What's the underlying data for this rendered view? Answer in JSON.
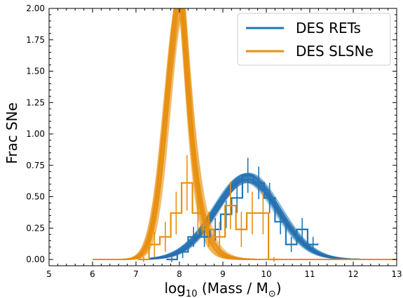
{
  "chart_data": {
    "type": "line",
    "xlabel_main": "log",
    "xlabel_sub": "10",
    "xlabel_rest": " (Mass / M",
    "xlabel_sun": "⊙",
    "xlabel_close": ")",
    "ylabel": "Frac SNe",
    "xlim": [
      5,
      13
    ],
    "ylim": [
      -0.05,
      2.0
    ],
    "xticks": [
      5,
      6,
      7,
      8,
      9,
      10,
      11,
      12,
      13
    ],
    "yticks": [
      0.0,
      0.25,
      0.5,
      0.75,
      1.0,
      1.25,
      1.5,
      1.75,
      2.0
    ],
    "ytick_labels": [
      "0.00",
      "0.25",
      "0.50",
      "0.75",
      "1.00",
      "1.25",
      "1.50",
      "1.75",
      "2.00"
    ],
    "legend_position": "upper right",
    "grid": false,
    "series": [
      {
        "name": "DES RETs",
        "color": "#1f77b4",
        "curve": {
          "center": 9.55,
          "sigma": 0.72,
          "peak": 0.65,
          "xmin": 7.3,
          "xmax": 12.4
        },
        "hist_edges": [
          7.7,
          7.95,
          8.2,
          8.45,
          8.7,
          8.95,
          9.2,
          9.45,
          9.7,
          9.95,
          10.2,
          10.45,
          10.7,
          10.95,
          11.2
        ],
        "hist_values": [
          0.0,
          0.06,
          0.18,
          0.18,
          0.24,
          0.36,
          0.49,
          0.67,
          0.61,
          0.49,
          0.3,
          0.12,
          0.24,
          0.12,
          0.0
        ],
        "hist_errors": [
          0.02,
          0.05,
          0.08,
          0.08,
          0.09,
          0.11,
          0.12,
          0.14,
          0.13,
          0.12,
          0.1,
          0.06,
          0.09,
          0.06,
          0.02
        ]
      },
      {
        "name": "DES SLSNe",
        "color": "#e8900c",
        "curve": {
          "center": 8.05,
          "sigma_left": 0.33,
          "sigma_right": 0.42,
          "peak": 2.05,
          "tail": 0.9,
          "xmin": 6.0,
          "xmax": 13.0
        },
        "hist_edges": [
          7.05,
          7.3,
          7.55,
          7.8,
          8.05,
          8.3,
          8.55,
          8.8,
          9.05,
          9.3,
          9.55,
          9.8,
          10.05,
          10.3
        ],
        "hist_values": [
          0.0,
          0.12,
          0.18,
          0.37,
          0.61,
          0.37,
          0.24,
          0.18,
          0.43,
          0.24,
          0.37,
          0.37,
          0.0,
          0.0
        ],
        "hist_errors": [
          0.02,
          0.1,
          0.12,
          0.17,
          0.22,
          0.17,
          0.14,
          0.12,
          0.19,
          0.14,
          0.17,
          0.17,
          0.02,
          0.0
        ]
      }
    ]
  }
}
